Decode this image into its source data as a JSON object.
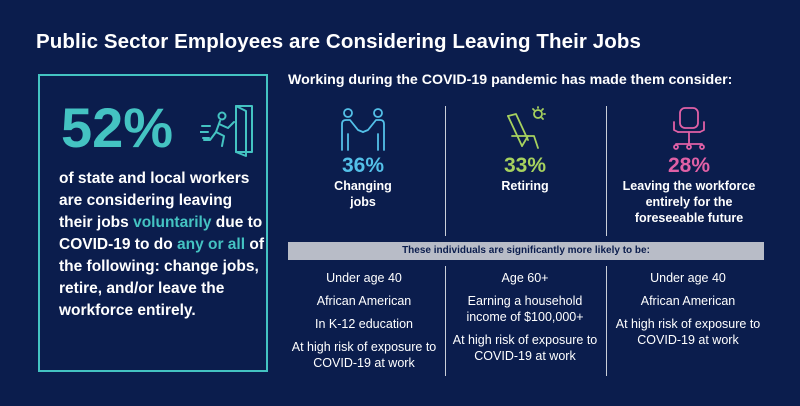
{
  "title": "Public Sector Employees are Considering Leaving Their Jobs",
  "stat": {
    "value": "52%",
    "desc_1": "of state and local workers are considering leaving their jobs ",
    "desc_hl1": "voluntarily",
    "desc_2": " due to COVID-19 to do ",
    "desc_hl2": "any or all",
    "desc_3": " of the following: change jobs, retire, and/or leave the workforce entirely."
  },
  "subhead": "Working during the COVID-19 pandemic has made them consider:",
  "options": [
    {
      "pct": "36%",
      "label": "Changing jobs",
      "color": "#53c0e8",
      "icon": "handshake-icon"
    },
    {
      "pct": "33%",
      "label": "Retiring",
      "color": "#a6d15e",
      "icon": "beach-chair-icon"
    },
    {
      "pct": "28%",
      "label": "Leaving the workforce entirely for the foreseeable future",
      "color": "#e060a6",
      "icon": "office-chair-icon"
    }
  ],
  "band": "These individuals are significantly more likely to be:",
  "traits": [
    [
      "Under age 40",
      "African American",
      "In K-12 education",
      "At high risk of exposure to COVID-19 at work"
    ],
    [
      "Age 60+",
      "Earning a household income of $100,000+",
      "At high risk of exposure to COVID-19 at work"
    ],
    [
      "Under age 40",
      "African American",
      "At high risk of exposure to COVID-19 at work"
    ]
  ]
}
